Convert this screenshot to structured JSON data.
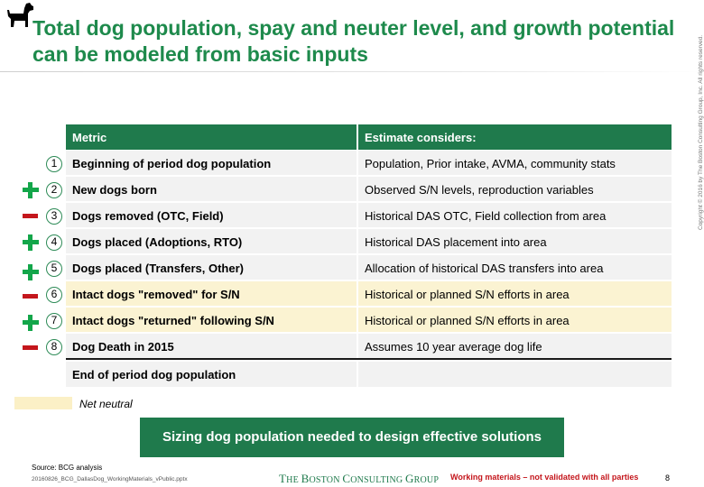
{
  "title": "Total dog population, spay and neuter level, and growth potential can be modeled from basic inputs",
  "table": {
    "headers": [
      "Metric",
      "Estimate considers:"
    ],
    "rows": [
      {
        "num": "1",
        "sign": "",
        "metric": "Beginning of period dog population",
        "estimate": "Population, Prior intake, AVMA, community stats",
        "highlight": false
      },
      {
        "num": "2",
        "sign": "plus",
        "metric": "New dogs born",
        "estimate": "Observed S/N levels, reproduction variables",
        "highlight": false
      },
      {
        "num": "3",
        "sign": "minus",
        "metric": "Dogs removed (OTC, Field)",
        "estimate": "Historical DAS OTC, Field collection from area",
        "highlight": false
      },
      {
        "num": "4",
        "sign": "plus",
        "metric": "Dogs placed (Adoptions, RTO)",
        "estimate": "Historical DAS placement into area",
        "highlight": false
      },
      {
        "num": "5",
        "sign": "plus",
        "metric": "Dogs placed (Transfers, Other)",
        "estimate": "Allocation of historical DAS transfers into area",
        "highlight": false
      },
      {
        "num": "6",
        "sign": "minus",
        "metric": "Intact dogs \"removed\" for S/N",
        "estimate": "Historical or planned S/N efforts in area",
        "highlight": true
      },
      {
        "num": "7",
        "sign": "plus",
        "metric": "Intact dogs \"returned\" following S/N",
        "estimate": "Historical or planned S/N efforts in area",
        "highlight": true
      },
      {
        "num": "8",
        "sign": "minus",
        "metric": "Dog Death in 2015",
        "estimate": "Assumes 10 year average dog life",
        "highlight": false
      }
    ],
    "final_row": {
      "metric": "End of period dog population",
      "estimate": ""
    }
  },
  "legend": {
    "label": "Net neutral",
    "color": "#fbf0c6"
  },
  "cta": "Sizing dog population needed to design effective solutions",
  "footer": {
    "source": "Source: BCG analysis",
    "file": "20160826_BCG_DallasDog_WorkingMaterials_vPublic.pptx",
    "brand_prefix": "T",
    "brand_a": "HE ",
    "brand_b": "B",
    "brand_c": "OSTON ",
    "brand_d": "C",
    "brand_e": "ONSULTING ",
    "brand_f": "G",
    "brand_g": "ROUP",
    "working": "Working materials – not validated with all parties",
    "page": "8",
    "copyright": "Copyright © 2016 by The Boston Consulting Group, Inc. All rights reserved."
  },
  "colors": {
    "brand_green": "#1f7a4c",
    "plus": "#13a64a",
    "minus": "#c4161c",
    "highlight": "#fbf3d2"
  },
  "icons": {
    "logo": "dog-icon",
    "plus": "plus-icon",
    "minus": "minus-icon"
  }
}
